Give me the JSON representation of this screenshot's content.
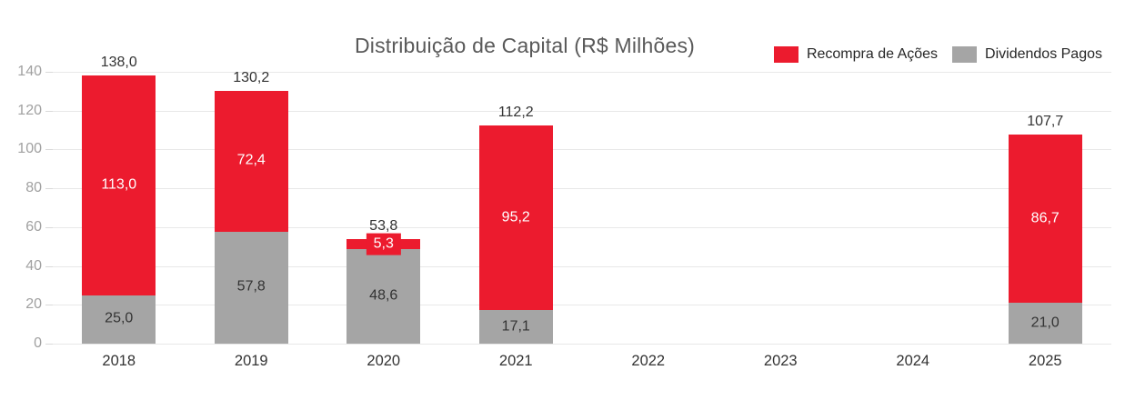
{
  "chart_data": {
    "type": "bar",
    "variant": "stacked-vertical",
    "title": "Distribuição de Capital (R$ Milhões)",
    "categories": [
      "2018",
      "2019",
      "2020",
      "2021",
      "2022",
      "2023",
      "2024",
      "2025"
    ],
    "series": [
      {
        "name": "Dividendos Pagos",
        "color": "#a5a5a5",
        "label_color": "#333333",
        "values": [
          25.0,
          57.8,
          48.6,
          17.1,
          null,
          null,
          null,
          21.0
        ],
        "labels": [
          "25,0",
          "57,8",
          "48,6",
          "17,1",
          "",
          "",
          "",
          "21,0"
        ]
      },
      {
        "name": "Recompra de Ações",
        "color": "#ec1b2e",
        "label_color": "#ffffff",
        "values": [
          113.0,
          72.4,
          5.3,
          95.2,
          null,
          null,
          null,
          86.7
        ],
        "labels": [
          "113,0",
          "72,4",
          "5,3",
          "95,2",
          "",
          "",
          "",
          "86,7"
        ]
      }
    ],
    "totals": [
      "138,0",
      "130,2",
      "53,8",
      "112,2",
      "",
      "",
      "",
      "107,7"
    ],
    "y_axis": {
      "min": 0,
      "max": 140,
      "step": 20,
      "ticks": [
        "0",
        "20",
        "40",
        "60",
        "80",
        "100",
        "120",
        "140"
      ]
    },
    "legend": [
      {
        "label": "Recompra de Ações",
        "color": "#ec1b2e"
      },
      {
        "label": "Dividendos Pagos",
        "color": "#a5a5a5"
      }
    ],
    "grid": true,
    "legend_position": "top-right"
  }
}
